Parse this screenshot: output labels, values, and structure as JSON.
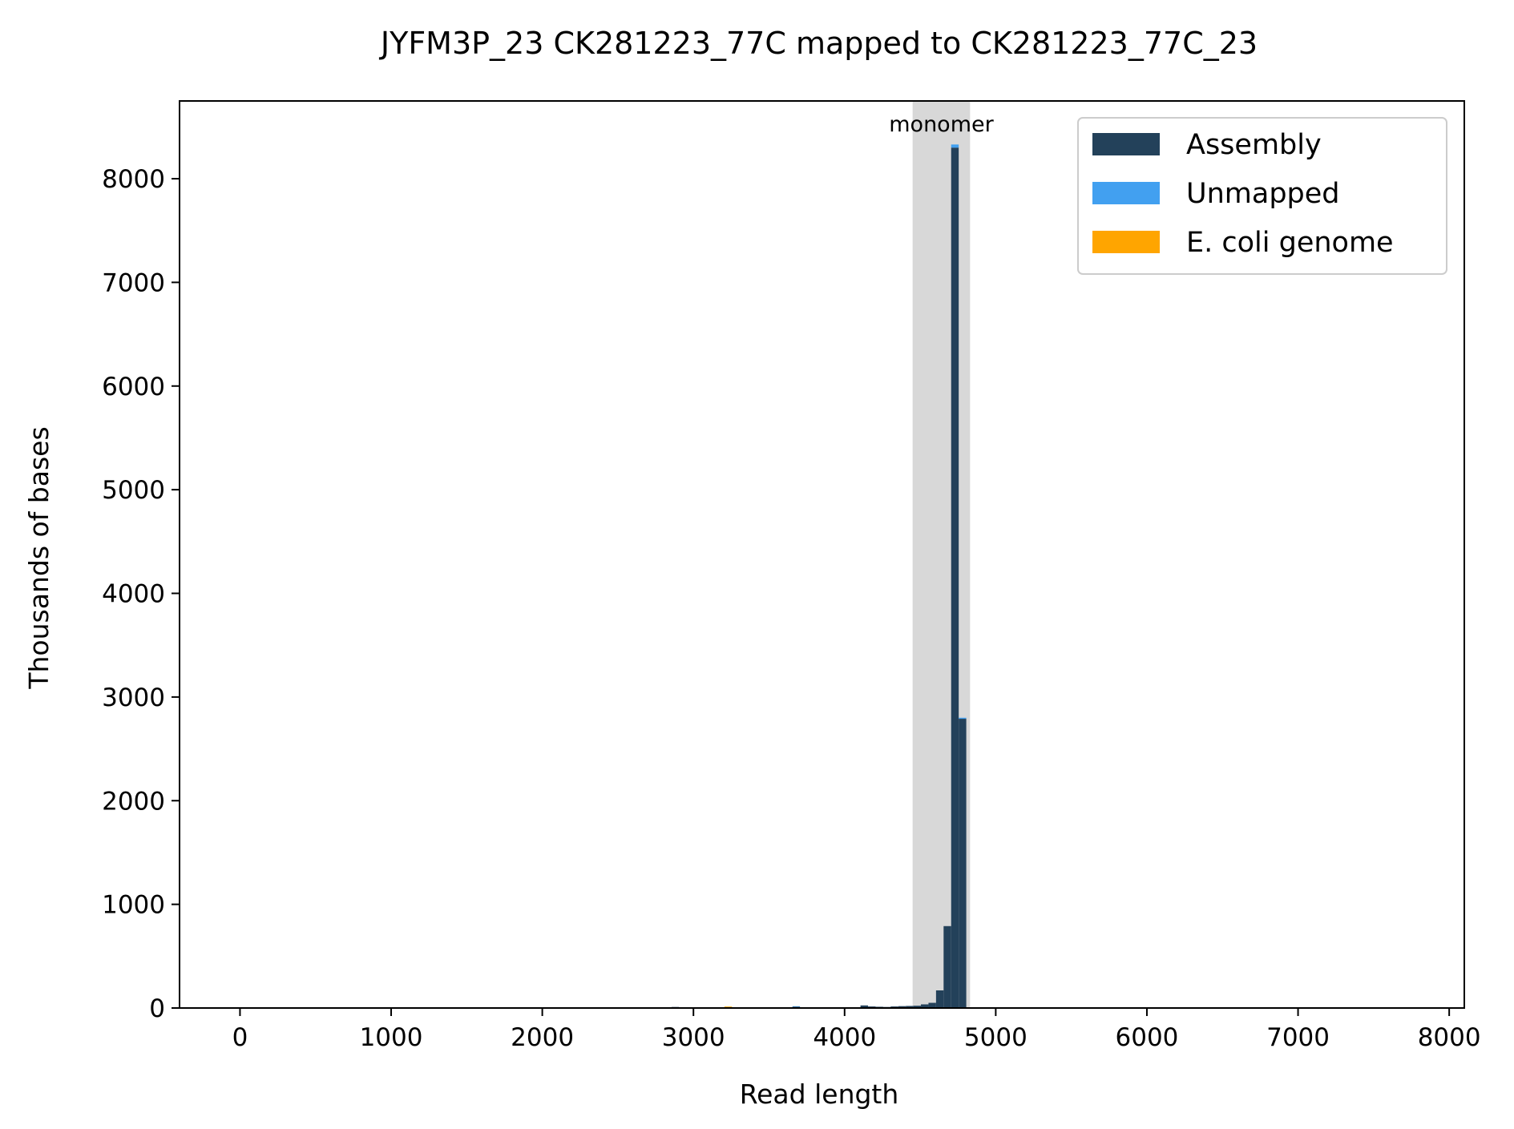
{
  "chart_data": {
    "type": "bar",
    "title": "JYFM3P_23 CK281223_77C mapped to CK281223_77C_23",
    "xlabel": "Read length",
    "ylabel": "Thousands of bases",
    "xlim": [
      -400,
      8100
    ],
    "ylim": [
      0,
      8750
    ],
    "x_ticks": [
      0,
      1000,
      2000,
      3000,
      4000,
      5000,
      6000,
      7000,
      8000
    ],
    "y_ticks": [
      0,
      1000,
      2000,
      3000,
      4000,
      5000,
      6000,
      7000,
      8000
    ],
    "grid": false,
    "stacked": true,
    "bin_width": 50,
    "legend_position": "top-right",
    "region": {
      "label": "monomer",
      "x_start": 4450,
      "x_end": 4830
    },
    "series": [
      {
        "name": "Assembly",
        "color": "#23415a",
        "points": [
          [
            2880,
            10
          ],
          [
            3230,
            8
          ],
          [
            3680,
            12
          ],
          [
            4130,
            25
          ],
          [
            4180,
            15
          ],
          [
            4230,
            12
          ],
          [
            4280,
            10
          ],
          [
            4330,
            15
          ],
          [
            4380,
            18
          ],
          [
            4430,
            20
          ],
          [
            4480,
            22
          ],
          [
            4530,
            35
          ],
          [
            4580,
            50
          ],
          [
            4630,
            170
          ],
          [
            4680,
            790
          ],
          [
            4730,
            8300
          ],
          [
            4780,
            2790
          ]
        ]
      },
      {
        "name": "Unmapped",
        "color": "#42a0f0",
        "points": [
          [
            4730,
            30
          ],
          [
            4780,
            10
          ],
          [
            3680,
            5
          ]
        ]
      },
      {
        "name": "E. coli genome",
        "color": "#ffa500",
        "points": [
          [
            3230,
            6
          ],
          [
            3880,
            8
          ]
        ]
      }
    ]
  }
}
